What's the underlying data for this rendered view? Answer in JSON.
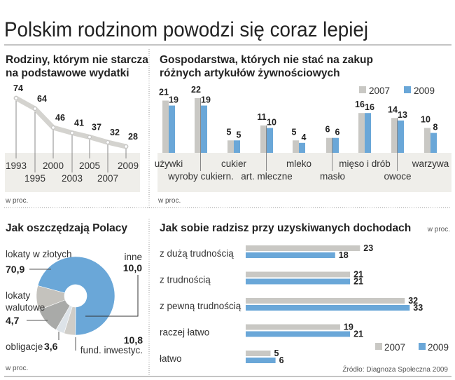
{
  "title": "Polskim rodzinom powodzi się coraz lepiej",
  "colors": {
    "gray": "#c9c8c4",
    "blue": "#6aa7d8",
    "band": "#efeeea",
    "line": "#d4d3cf"
  },
  "chart_data": [
    {
      "type": "line",
      "title_lines": [
        "Rodziny, którym nie starcza",
        "na podstawowe wydatki"
      ],
      "categories": [
        "1993",
        "1995",
        "2000",
        "2003",
        "2005",
        "2007",
        "2009"
      ],
      "values": [
        74,
        64,
        46,
        41,
        37,
        32,
        28
      ],
      "unit_note": "w proc."
    },
    {
      "type": "bar",
      "title_lines": [
        "Gospodarstwa, których nie stać na zakup",
        "różnych artykułów żywnościowych"
      ],
      "categories": [
        "używki",
        "wyroby cukiern.",
        "cukier",
        "art. mleczne",
        "mleko",
        "masło",
        "mięso i drób",
        "owoce",
        "warzywa"
      ],
      "series": [
        {
          "name": "2007",
          "values": [
            21,
            22,
            5,
            11,
            5,
            6,
            16,
            14,
            10
          ]
        },
        {
          "name": "2009",
          "values": [
            19,
            19,
            5,
            10,
            4,
            6,
            16,
            13,
            8
          ]
        }
      ],
      "legend": "top-right",
      "unit_note": "w proc."
    },
    {
      "type": "pie",
      "title": "Jak oszczędzają Polacy",
      "slices": [
        {
          "label": "lokaty w złotych",
          "value": 70.9,
          "value_text": "70,9"
        },
        {
          "label": "lokaty walutowe",
          "value": 4.7,
          "value_text": "4,7"
        },
        {
          "label": "obligacje",
          "value": 3.6,
          "value_text": "3,6"
        },
        {
          "label": "fund. inwestyc.",
          "value": 10.8,
          "value_text": "10,8"
        },
        {
          "label": "inne",
          "value": 10.0,
          "value_text": "10,0"
        }
      ],
      "unit_note": "w proc."
    },
    {
      "type": "bar",
      "orientation": "horizontal",
      "title": "Jak sobie radzisz przy uzyskiwanych dochodach",
      "categories": [
        "z dużą trudnością",
        "z trudnością",
        "z pewną trudnością",
        "raczej łatwo",
        "łatwo"
      ],
      "series": [
        {
          "name": "2007",
          "values": [
            23,
            21,
            32,
            19,
            5
          ]
        },
        {
          "name": "2009",
          "values": [
            18,
            21,
            33,
            21,
            6
          ]
        }
      ],
      "legend": "bottom-right",
      "unit_note": "w proc."
    }
  ],
  "source": "Źródło: Diagnoza Społeczna 2009"
}
